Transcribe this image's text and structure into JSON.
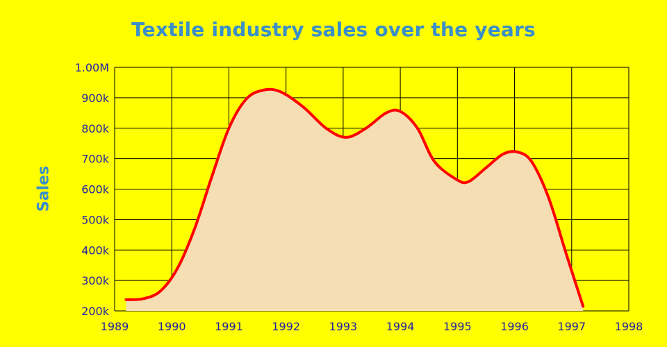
{
  "colors": {
    "background": "#ffff00",
    "title": "#3a8fc8",
    "line": "#ff0000",
    "fill": "#f5deb3",
    "grid": "#000000",
    "tick_text": "#1f1fa8"
  },
  "chart_data": {
    "type": "area",
    "title": "Textile industry sales over the years",
    "xlabel": "",
    "ylabel": "Sales",
    "xlim": [
      1989,
      1998
    ],
    "ylim": [
      200000,
      1000000
    ],
    "x_ticks": [
      "1989",
      "1990",
      "1991",
      "1992",
      "1993",
      "1994",
      "1995",
      "1996",
      "1997",
      "1998"
    ],
    "y_ticks": [
      "200k",
      "300k",
      "400k",
      "500k",
      "600k",
      "700k",
      "800k",
      "900k",
      "1.00M"
    ],
    "grid": true,
    "series": [
      {
        "x": [
          1989.2,
          1989.5,
          1989.8,
          1990.1,
          1990.4,
          1990.7,
          1991.0,
          1991.3,
          1991.6,
          1991.9,
          1992.3,
          1992.7,
          1993.05,
          1993.4,
          1993.75,
          1994.0,
          1994.3,
          1994.6,
          1995.0,
          1995.2,
          1995.5,
          1995.8,
          1996.05,
          1996.3,
          1996.6,
          1996.9,
          1997.2
        ],
        "y": [
          237000,
          240000,
          265000,
          340000,
          470000,
          640000,
          800000,
          895000,
          925000,
          920000,
          870000,
          800000,
          770000,
          800000,
          850000,
          855000,
          800000,
          690000,
          630000,
          625000,
          670000,
          715000,
          722000,
          690000,
          570000,
          390000,
          215000
        ]
      }
    ]
  }
}
